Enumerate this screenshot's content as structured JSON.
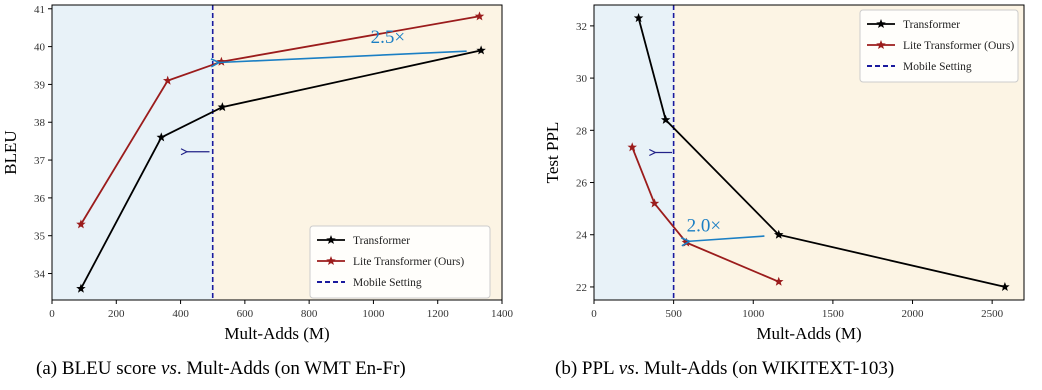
{
  "chart_data": [
    {
      "type": "line",
      "xlabel": "Mult-Adds (M)",
      "ylabel": "BLEU",
      "xlim": [
        0,
        1400
      ],
      "ylim": [
        33.3,
        41.1
      ],
      "xticks": [
        0,
        200,
        400,
        600,
        800,
        1000,
        1200,
        1400
      ],
      "yticks": [
        34,
        35,
        36,
        37,
        38,
        39,
        40,
        41
      ],
      "mobile_setting_x": 500,
      "series": [
        {
          "name": "Transformer",
          "color": "#000000",
          "points": [
            [
              90,
              33.6
            ],
            [
              340,
              37.6
            ],
            [
              530,
              38.4
            ],
            [
              1335,
              39.9
            ]
          ]
        },
        {
          "name": "Lite Transformer (Ours)",
          "color": "#9b1c1c",
          "points": [
            [
              90,
              35.3
            ],
            [
              360,
              39.1
            ],
            [
              527,
              39.6
            ],
            [
              1330,
              40.8
            ]
          ]
        }
      ],
      "mobile_label": "Mobile Setting",
      "legend_position": "lower right",
      "annotation": {
        "text": "2.5×",
        "from": [
          1290,
          39.88
        ],
        "to": [
          520,
          39.58
        ],
        "text_at": [
          1045,
          40.25
        ]
      },
      "small_arrow": {
        "from": [
          490,
          37.22
        ],
        "to": [
          420,
          37.22
        ]
      },
      "region_colors": {
        "left": "#e8f2f8",
        "right": "#fcf4e4"
      }
    },
    {
      "type": "line",
      "xlabel": "Mult-Adds (M)",
      "ylabel": "Test PPL",
      "xlim": [
        0,
        2700
      ],
      "ylim": [
        21.5,
        32.8
      ],
      "xticks": [
        0,
        500,
        1000,
        1500,
        2000,
        2500
      ],
      "yticks": [
        22,
        24,
        26,
        28,
        30,
        32
      ],
      "mobile_setting_x": 500,
      "series": [
        {
          "name": "Transformer",
          "color": "#000000",
          "points": [
            [
              280,
              32.3
            ],
            [
              450,
              28.4
            ],
            [
              1160,
              24.0
            ],
            [
              2580,
              22.0
            ]
          ]
        },
        {
          "name": "Lite Transformer (Ours)",
          "color": "#9b1c1c",
          "points": [
            [
              240,
              27.35
            ],
            [
              380,
              25.2
            ],
            [
              580,
              23.7
            ],
            [
              1160,
              22.2
            ]
          ]
        }
      ],
      "mobile_label": "Mobile Setting",
      "legend_position": "upper right",
      "annotation": {
        "text": "2.0×",
        "from": [
          1070,
          23.95
        ],
        "to": [
          600,
          23.75
        ],
        "text_at": [
          690,
          24.35
        ]
      },
      "small_arrow": {
        "from": [
          490,
          27.15
        ],
        "to": [
          385,
          27.15
        ]
      },
      "region_colors": {
        "left": "#e8f2f8",
        "right": "#fcf4e4"
      }
    }
  ],
  "captions": {
    "a_prefix": "(a) BLEU score ",
    "a_vs": "vs",
    "a_suffix": ". Mult-Adds (on WMT En-Fr)",
    "b_prefix": "(b) PPL ",
    "b_vs": "vs",
    "b_suffix": ". Mult-Adds (on WIKITEXT-103)"
  }
}
